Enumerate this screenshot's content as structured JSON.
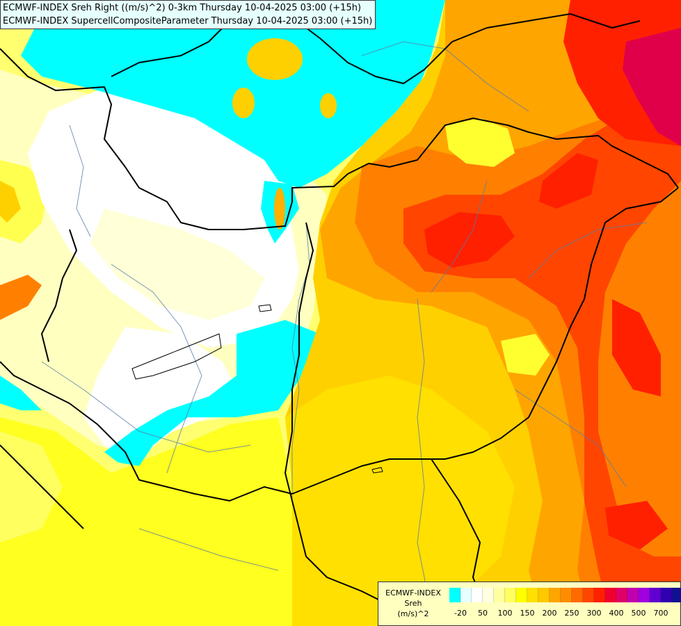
{
  "header": {
    "line1": "ECMWF-INDEX Sreh Right ((m/s)^2) 0-3km Thursday 10-04-2025 03:00 (+15h)",
    "line2": "ECMWF-INDEX SupercellCompositeParameter Thursday 10-04-2025 03:00 (+15h)"
  },
  "legend": {
    "title1": "ECMWF-INDEX",
    "title2": "Sreh",
    "title3": "(m/s)^2",
    "colors": [
      "#00ffff",
      "#e6ffff",
      "#ffffff",
      "#ffffe0",
      "#ffffa0",
      "#ffff60",
      "#ffff00",
      "#ffe000",
      "#ffc800",
      "#ffa500",
      "#ff8c00",
      "#ff6a00",
      "#ff4500",
      "#ff2000",
      "#f00030",
      "#e0006a",
      "#c000b0",
      "#a000e0",
      "#6000d0",
      "#3000b0",
      "#101090"
    ],
    "ticks": [
      "-20",
      "50",
      "100",
      "150",
      "200",
      "250",
      "300",
      "400",
      "500",
      "700"
    ]
  },
  "map": {
    "colors": {
      "cyan": "#00ffff",
      "white": "#ffffff",
      "cream": "#ffffc0",
      "pale_yellow": "#ffff80",
      "yellow": "#ffff00",
      "gold": "#ffd700",
      "orange_light": "#ffb000",
      "orange": "#ff8c00",
      "orange_dark": "#ff6000",
      "red_orange": "#ff3000",
      "red": "#ff0000",
      "magenta": "#e0004a"
    }
  }
}
